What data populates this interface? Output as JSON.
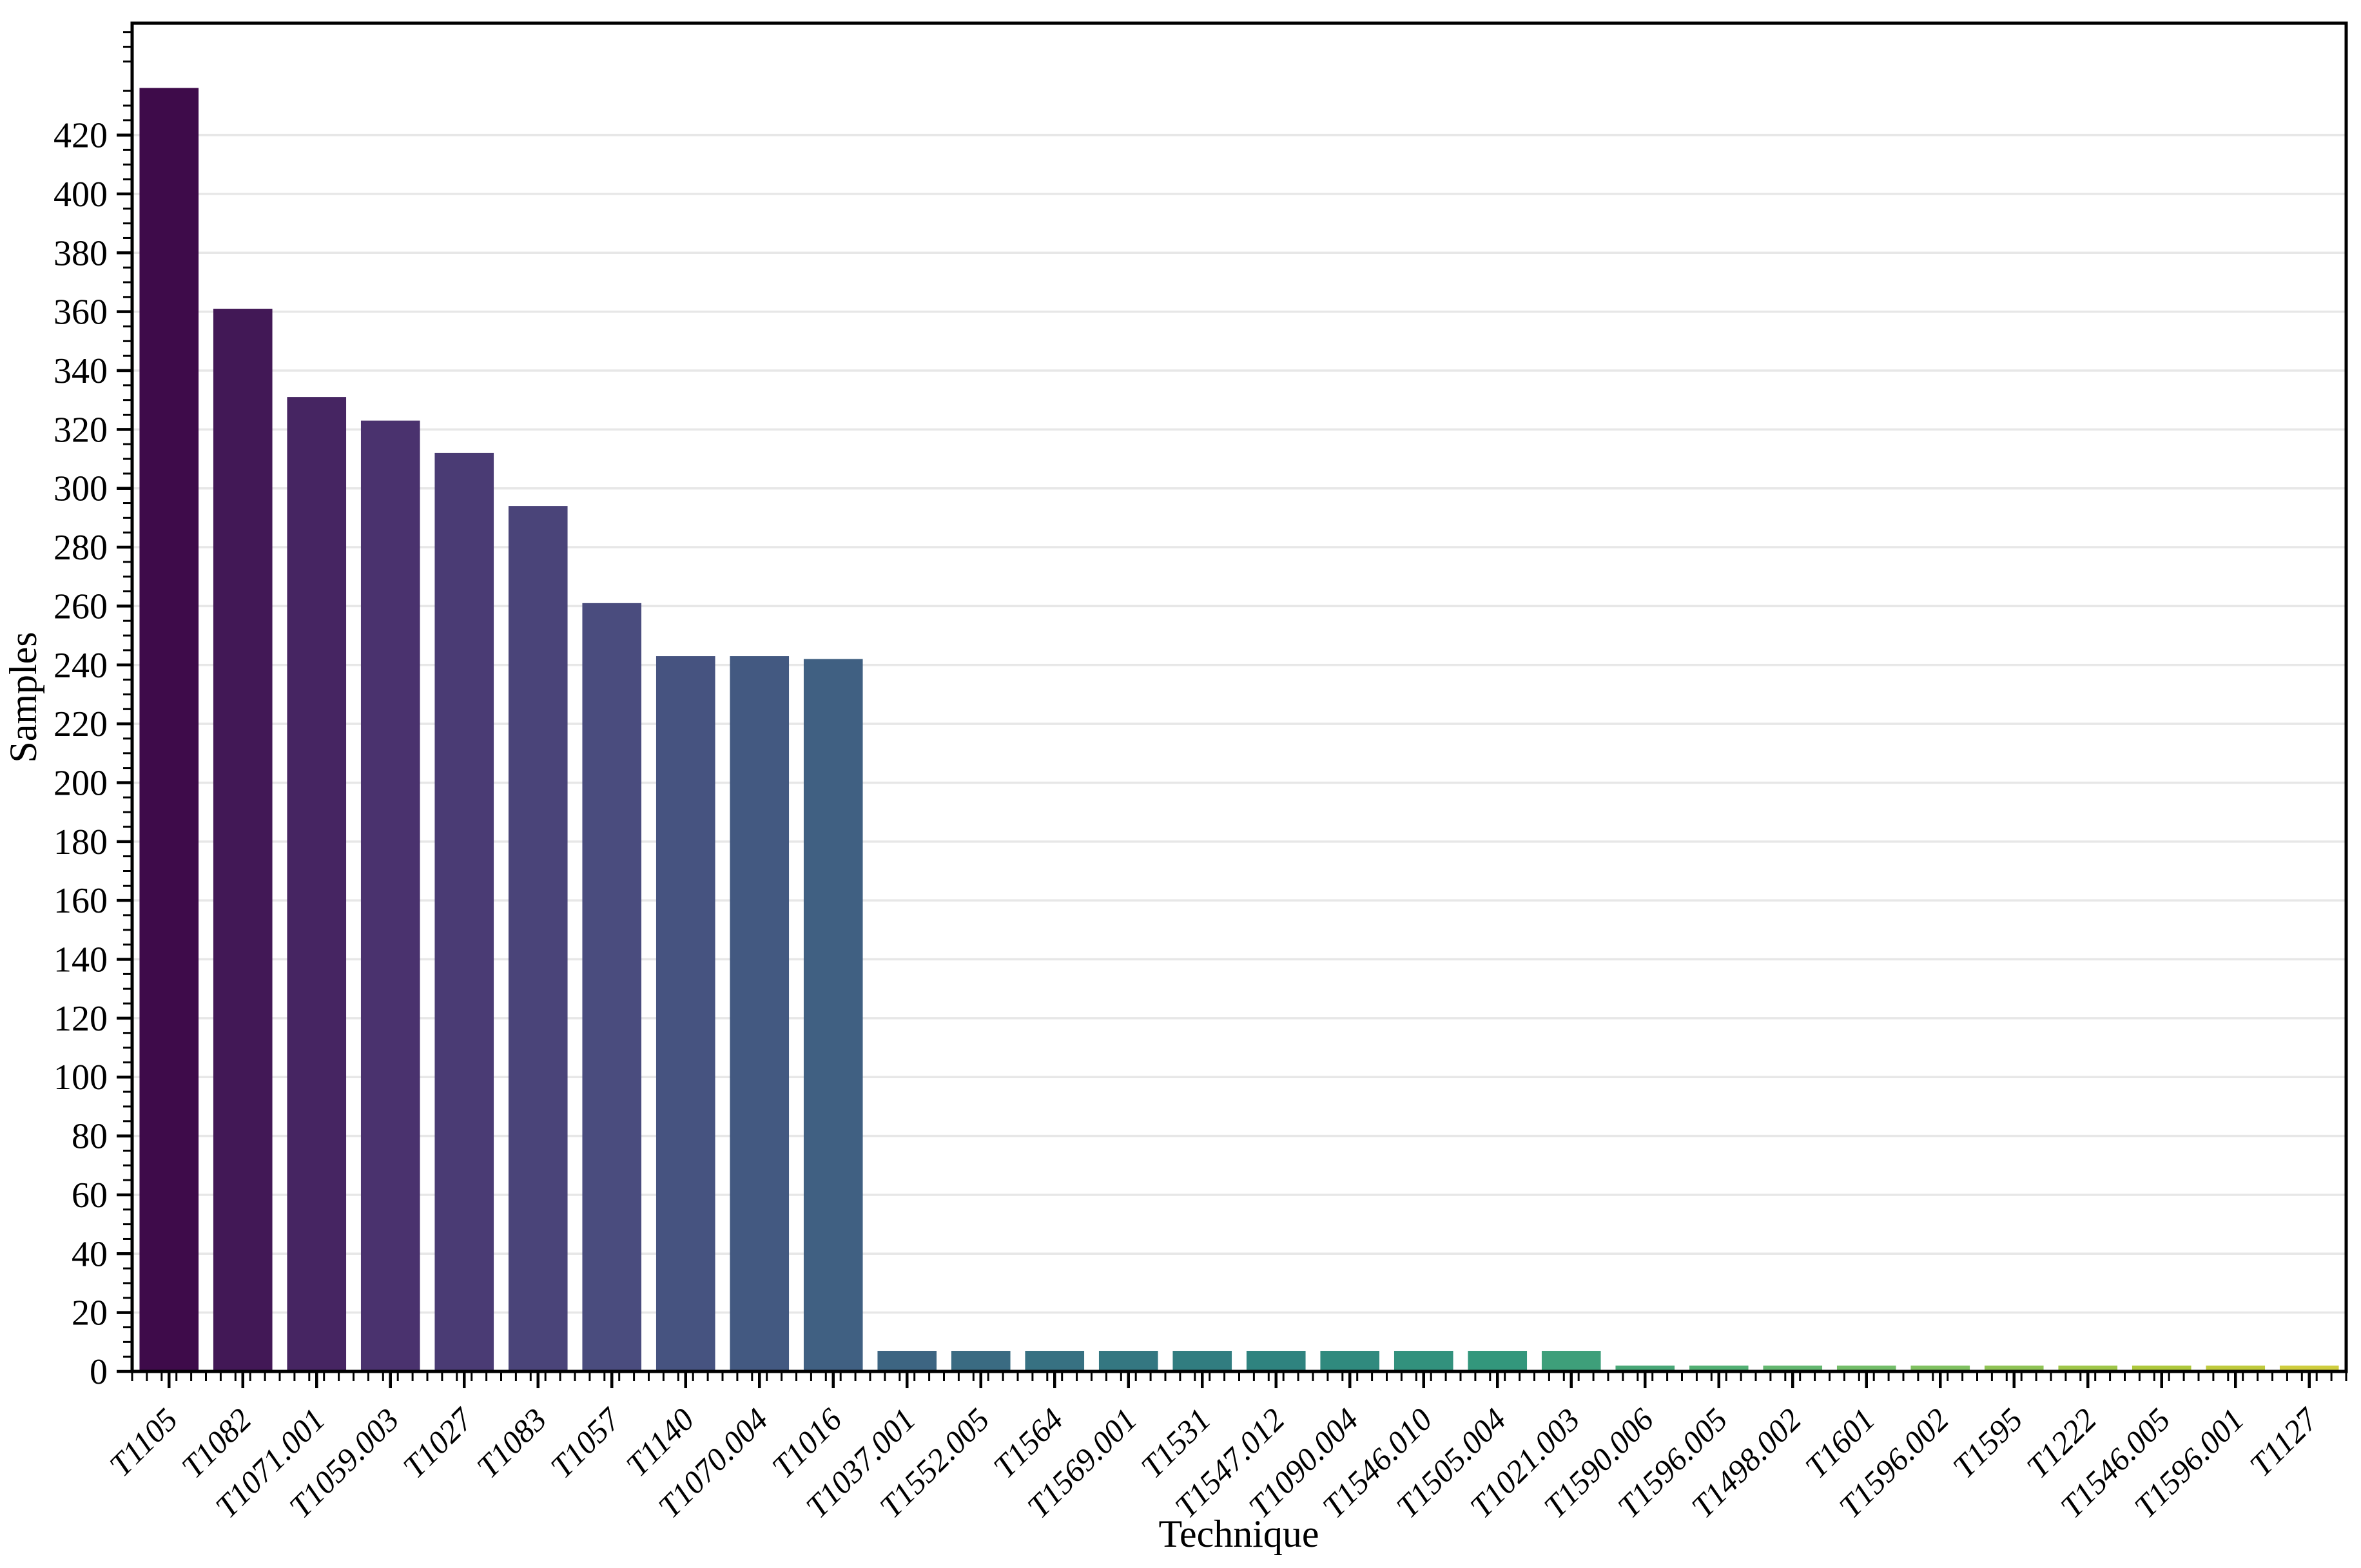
{
  "chart_data": {
    "type": "bar",
    "title": "",
    "xlabel": "Technique",
    "ylabel": "Samples",
    "categories": [
      "T1105",
      "T1082",
      "T1071.001",
      "T1059.003",
      "T1027",
      "T1083",
      "T1057",
      "T1140",
      "T1070.004",
      "T1016",
      "T1037.001",
      "T1552.005",
      "T1564",
      "T1569.001",
      "T1531",
      "T1547.012",
      "T1090.004",
      "T1546.010",
      "T1505.004",
      "T1021.003",
      "T1590.006",
      "T1596.005",
      "T1498.002",
      "T1601",
      "T1596.002",
      "T1595",
      "T1222",
      "T1546.005",
      "T1596.001",
      "T1127"
    ],
    "values": [
      436,
      361,
      331,
      323,
      312,
      294,
      261,
      243,
      243,
      242,
      7,
      7,
      7,
      7,
      7,
      7,
      7,
      7,
      7,
      7,
      2,
      2,
      2,
      2,
      2,
      2,
      2,
      2,
      2,
      2
    ],
    "ylim": [
      0,
      458
    ],
    "ytick_step": 20,
    "ytick_label_max": 420,
    "yminor_step": 5,
    "xminor_per_slot": 5,
    "bar_rel_width": 0.8,
    "grid": "horizontal",
    "legend": "none",
    "gridline_color": "#e7e7e7",
    "axis_color": "#000000",
    "background_color": "#ffffff",
    "palette": {
      "name": "viridis-desaturated",
      "desaturation": 0.75,
      "anchors": [
        "#440154",
        "#482878",
        "#414487",
        "#355f8d",
        "#2a788e",
        "#21918c",
        "#22a884",
        "#44bf70",
        "#7ad151",
        "#bddf26",
        "#fde725"
      ]
    }
  }
}
